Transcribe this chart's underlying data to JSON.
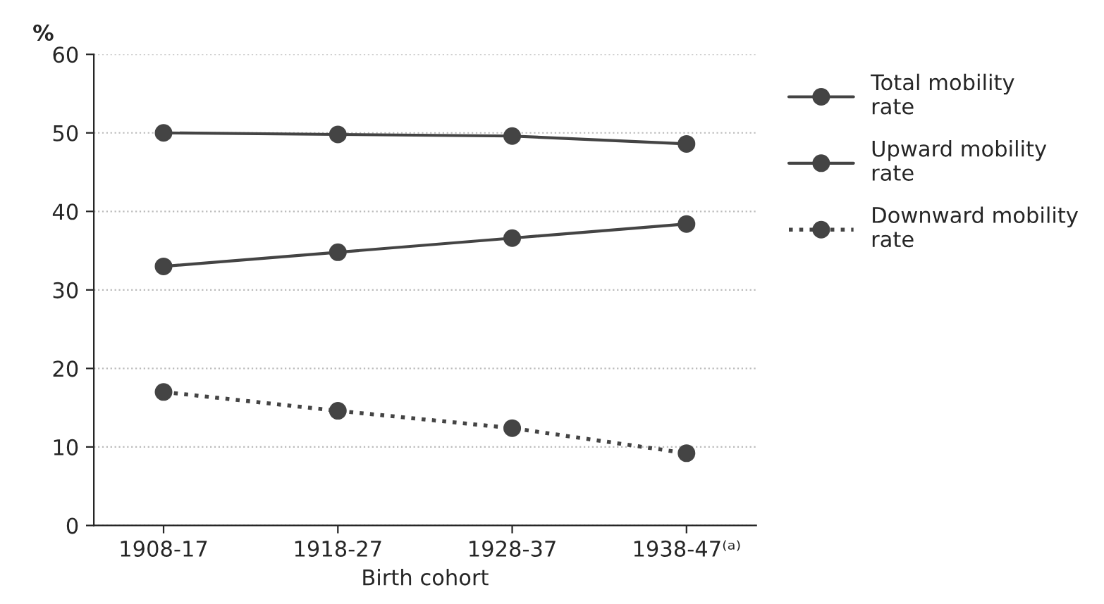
{
  "chart_data": {
    "type": "line",
    "ylabel": "%",
    "xlabel": "Birth cohort",
    "categories": [
      "1908-17",
      "1918-27",
      "1928-37",
      "1938-47⁽ᵃ⁾"
    ],
    "series": [
      {
        "name": "Total mobility rate",
        "color": "#444444",
        "values": [
          50,
          49.8,
          49.6,
          48.6
        ],
        "line_style": "solid"
      },
      {
        "name": "Upward mobility rate",
        "color": "#444444",
        "values": [
          33,
          34.8,
          36.6,
          38.4
        ],
        "line_style": "solid"
      },
      {
        "name": "Downward mobility rate",
        "color": "#444444",
        "values": [
          17,
          14.6,
          12.4,
          9.2
        ],
        "line_style": "dotted"
      }
    ],
    "ylim": [
      0,
      60
    ],
    "yticks": [
      0,
      10,
      20,
      30,
      40,
      50,
      60
    ],
    "grid": "y",
    "legend": "right",
    "marker": "circle"
  }
}
